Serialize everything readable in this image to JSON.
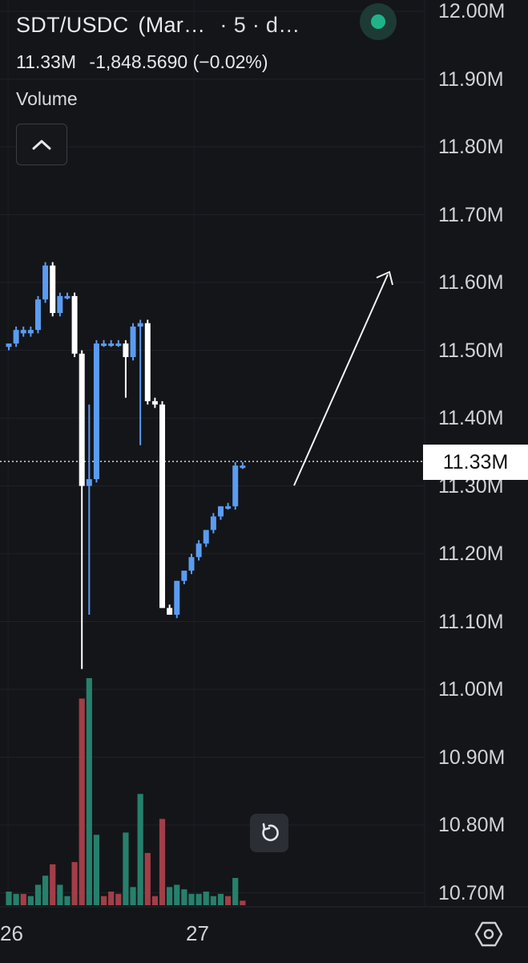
{
  "header": {
    "symbol": "SDT/USDC",
    "market": "(Mar…",
    "separator": "·",
    "interval": "5 · d…",
    "last_value": "11.33M",
    "change": "-1,848.5690 (−0.02%)",
    "volume_label": "Volume",
    "status_icon": "live-status-dot"
  },
  "current_price_label": "11.33M",
  "x_axis_labels": [
    "26",
    "27"
  ],
  "colors": {
    "background": "#141519",
    "up_candle": "#5b9cf0",
    "down_candle": "#ffffff",
    "volume_up": "#26806c",
    "volume_down": "#a23e48"
  },
  "chart_data": {
    "type": "candlestick",
    "y_axis": {
      "ticks": [
        "12.00M",
        "11.90M",
        "11.80M",
        "11.70M",
        "11.60M",
        "11.50M",
        "11.40M",
        "11.30M",
        "11.20M",
        "11.10M",
        "11.00M",
        "10.90M",
        "10.80M",
        "10.70M"
      ],
      "ylim": [
        10.69,
        12.01
      ],
      "unit": "M"
    },
    "x_axis": {
      "ticks": [
        "26",
        "27"
      ]
    },
    "current_price": 11.33,
    "candles": [
      {
        "o": 11.505,
        "h": 11.51,
        "l": 11.5,
        "c": 11.51
      },
      {
        "o": 11.51,
        "h": 11.535,
        "l": 11.505,
        "c": 11.53
      },
      {
        "o": 11.525,
        "h": 11.535,
        "l": 11.52,
        "c": 11.53
      },
      {
        "o": 11.525,
        "h": 11.535,
        "l": 11.52,
        "c": 11.53
      },
      {
        "o": 11.53,
        "h": 11.58,
        "l": 11.525,
        "c": 11.575
      },
      {
        "o": 11.575,
        "h": 11.63,
        "l": 11.57,
        "c": 11.625
      },
      {
        "o": 11.625,
        "h": 11.63,
        "l": 11.55,
        "c": 11.555
      },
      {
        "o": 11.555,
        "h": 11.585,
        "l": 11.55,
        "c": 11.58
      },
      {
        "o": 11.58,
        "h": 11.585,
        "l": 11.575,
        "c": 11.58
      },
      {
        "o": 11.58,
        "h": 11.585,
        "l": 11.49,
        "c": 11.495
      },
      {
        "o": 11.495,
        "h": 11.5,
        "l": 11.03,
        "c": 11.3
      },
      {
        "o": 11.3,
        "h": 11.42,
        "l": 11.11,
        "c": 11.31
      },
      {
        "o": 11.31,
        "h": 11.515,
        "l": 11.305,
        "c": 11.51
      },
      {
        "o": 11.51,
        "h": 11.515,
        "l": 11.505,
        "c": 11.51
      },
      {
        "o": 11.51,
        "h": 11.515,
        "l": 11.505,
        "c": 11.51
      },
      {
        "o": 11.51,
        "h": 11.515,
        "l": 11.505,
        "c": 11.51
      },
      {
        "o": 11.51,
        "h": 11.515,
        "l": 11.43,
        "c": 11.49
      },
      {
        "o": 11.49,
        "h": 11.54,
        "l": 11.485,
        "c": 11.535
      },
      {
        "o": 11.535,
        "h": 11.545,
        "l": 11.36,
        "c": 11.54
      },
      {
        "o": 11.54,
        "h": 11.545,
        "l": 11.42,
        "c": 11.425
      },
      {
        "o": 11.425,
        "h": 11.43,
        "l": 11.415,
        "c": 11.42
      },
      {
        "o": 11.42,
        "h": 11.425,
        "l": 11.12,
        "c": 11.12
      },
      {
        "o": 11.12,
        "h": 11.125,
        "l": 11.11,
        "c": 11.11
      },
      {
        "o": 11.11,
        "h": 11.16,
        "l": 11.105,
        "c": 11.16
      },
      {
        "o": 11.16,
        "h": 11.175,
        "l": 11.155,
        "c": 11.175
      },
      {
        "o": 11.175,
        "h": 11.2,
        "l": 11.17,
        "c": 11.195
      },
      {
        "o": 11.195,
        "h": 11.22,
        "l": 11.19,
        "c": 11.215
      },
      {
        "o": 11.215,
        "h": 11.235,
        "l": 11.21,
        "c": 11.235
      },
      {
        "o": 11.235,
        "h": 11.26,
        "l": 11.23,
        "c": 11.255
      },
      {
        "o": 11.255,
        "h": 11.27,
        "l": 11.25,
        "c": 11.27
      },
      {
        "o": 11.27,
        "h": 11.275,
        "l": 11.265,
        "c": 11.27
      },
      {
        "o": 11.27,
        "h": 11.335,
        "l": 11.265,
        "c": 11.33
      },
      {
        "o": 11.33,
        "h": 11.335,
        "l": 11.325,
        "c": 11.33
      }
    ],
    "volume": [
      {
        "v": 0.06,
        "dir": "up"
      },
      {
        "v": 0.05,
        "dir": "up"
      },
      {
        "v": 0.05,
        "dir": "down"
      },
      {
        "v": 0.04,
        "dir": "up"
      },
      {
        "v": 0.09,
        "dir": "up"
      },
      {
        "v": 0.13,
        "dir": "up"
      },
      {
        "v": 0.18,
        "dir": "down"
      },
      {
        "v": 0.09,
        "dir": "up"
      },
      {
        "v": 0.04,
        "dir": "up"
      },
      {
        "v": 0.19,
        "dir": "down"
      },
      {
        "v": 0.91,
        "dir": "down"
      },
      {
        "v": 1.0,
        "dir": "up"
      },
      {
        "v": 0.31,
        "dir": "up"
      },
      {
        "v": 0.04,
        "dir": "down"
      },
      {
        "v": 0.06,
        "dir": "down"
      },
      {
        "v": 0.05,
        "dir": "down"
      },
      {
        "v": 0.32,
        "dir": "up"
      },
      {
        "v": 0.08,
        "dir": "up"
      },
      {
        "v": 0.49,
        "dir": "up"
      },
      {
        "v": 0.23,
        "dir": "down"
      },
      {
        "v": 0.04,
        "dir": "down"
      },
      {
        "v": 0.38,
        "dir": "down"
      },
      {
        "v": 0.08,
        "dir": "up"
      },
      {
        "v": 0.09,
        "dir": "up"
      },
      {
        "v": 0.07,
        "dir": "up"
      },
      {
        "v": 0.05,
        "dir": "up"
      },
      {
        "v": 0.05,
        "dir": "up"
      },
      {
        "v": 0.06,
        "dir": "up"
      },
      {
        "v": 0.04,
        "dir": "up"
      },
      {
        "v": 0.05,
        "dir": "up"
      },
      {
        "v": 0.04,
        "dir": "down"
      },
      {
        "v": 0.12,
        "dir": "up"
      },
      {
        "v": 0.02,
        "dir": "down"
      }
    ],
    "annotation": {
      "type": "arrow",
      "direction": "up-right"
    }
  }
}
